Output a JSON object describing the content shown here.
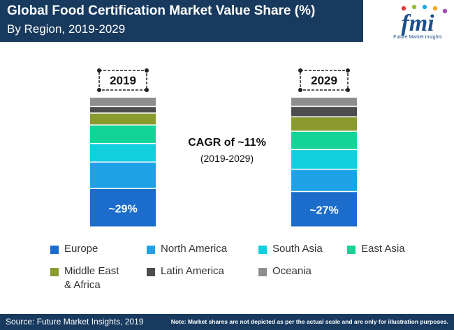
{
  "header": {
    "title": "Global Food Certification Market Value Share (%)",
    "subtitle": "By Region, 2019-2029"
  },
  "logo": {
    "main": "fmi",
    "tagline": "Future Market Insights"
  },
  "annotation": {
    "cagr": "CAGR of ~11%",
    "period": "(2019-2029)"
  },
  "footer": {
    "source": "Source: Future Market Insights, 2019",
    "note": "Note: Market shares are not depicted as per the actual scale and are only for illustration purposes."
  },
  "chart_data": {
    "type": "bar",
    "stacked": true,
    "categories": [
      "2019",
      "2029"
    ],
    "series": [
      {
        "name": "Europe",
        "color": "#1b6ccb",
        "values": [
          29,
          27
        ],
        "labels": [
          "~29%",
          "~27%"
        ]
      },
      {
        "name": "North America",
        "color": "#1ea1e6",
        "values": [
          20,
          17
        ],
        "labels": [
          "",
          ""
        ]
      },
      {
        "name": "South Asia",
        "color": "#12cfe0",
        "values": [
          14,
          15
        ],
        "labels": [
          "",
          ""
        ]
      },
      {
        "name": "East Asia",
        "color": "#14d397",
        "values": [
          14,
          14
        ],
        "labels": [
          "",
          ""
        ]
      },
      {
        "name": "Middle East\n& Africa",
        "color": "#8a9a2e",
        "values": [
          9,
          11
        ],
        "labels": [
          "",
          ""
        ]
      },
      {
        "name": "Latin America",
        "color": "#4d4d4d",
        "values": [
          5,
          8
        ],
        "labels": [
          "",
          ""
        ]
      },
      {
        "name": "Oceania",
        "color": "#8e8e8e",
        "values": [
          7,
          7
        ],
        "labels": [
          "",
          ""
        ]
      }
    ],
    "legend": "bottom"
  }
}
